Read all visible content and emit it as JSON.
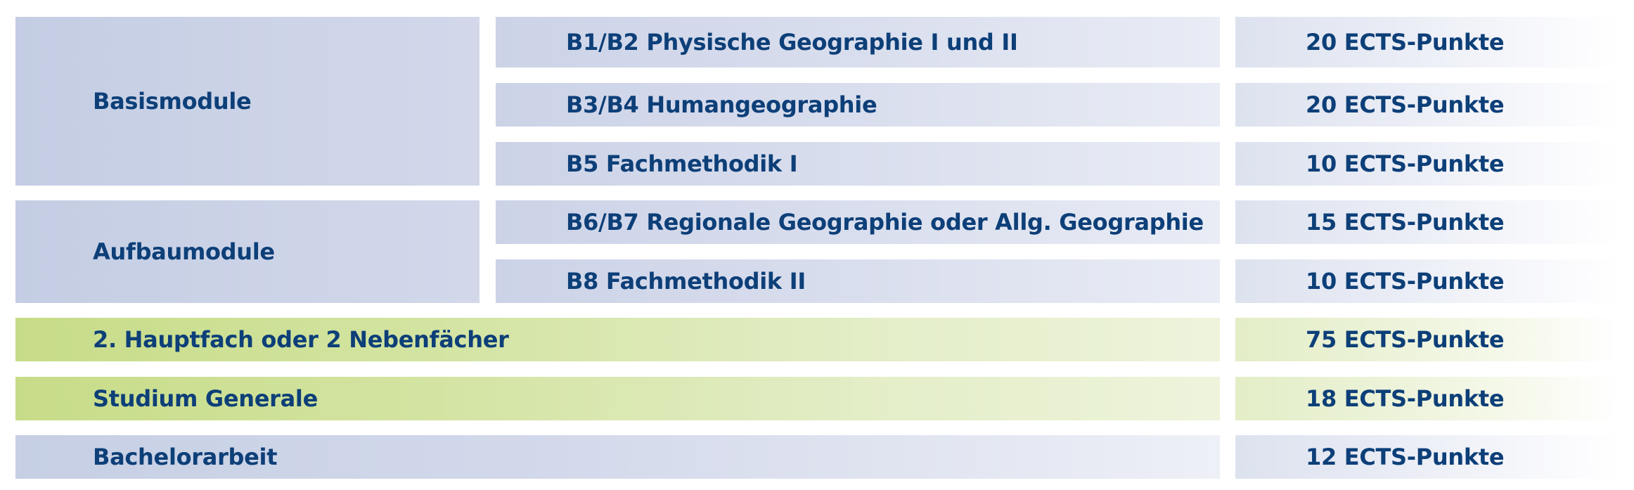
{
  "groups": {
    "basis": "Basismodule",
    "aufbau": "Aufbaumodule"
  },
  "modules": [
    {
      "name": "B1/B2 Physische Geographie I und II",
      "ects": "20 ECTS-Punkte"
    },
    {
      "name": "B3/B4 Humangeographie",
      "ects": "20 ECTS-Punkte"
    },
    {
      "name": "B5 Fachmethodik I",
      "ects": "10 ECTS-Punkte"
    },
    {
      "name": "B6/B7 Regionale Geographie oder Allg. Geographie",
      "ects": "15 ECTS-Punkte"
    },
    {
      "name": "B8 Fachmethodik II",
      "ects": "10 ECTS-Punkte"
    }
  ],
  "other": [
    {
      "name": "2. Hauptfach oder 2 Nebenfächer",
      "ects": "75 ECTS-Punkte"
    },
    {
      "name": "Studium Generale",
      "ects": "18 ECTS-Punkte"
    },
    {
      "name": "Bachelorarbeit",
      "ects": "12 ECTS-Punkte"
    }
  ]
}
